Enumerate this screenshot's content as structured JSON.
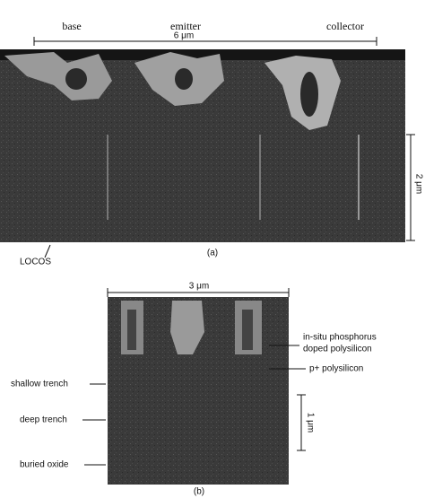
{
  "panel_a": {
    "labels": [
      "base",
      "emitter",
      "collector"
    ],
    "scale_horizontal": "6 μm",
    "scale_vertical": "2 μm",
    "annotation": "LOCOS",
    "caption": "(a)"
  },
  "panel_b": {
    "scale_horizontal": "3 μm",
    "scale_vertical": "1 μm",
    "right_labels": [
      "in-situ phosphorus",
      "doped polysilicon",
      "p+ polysilicon"
    ],
    "left_labels": [
      "shallow trench",
      "deep trench",
      "buried oxide"
    ],
    "caption": "(b)"
  }
}
